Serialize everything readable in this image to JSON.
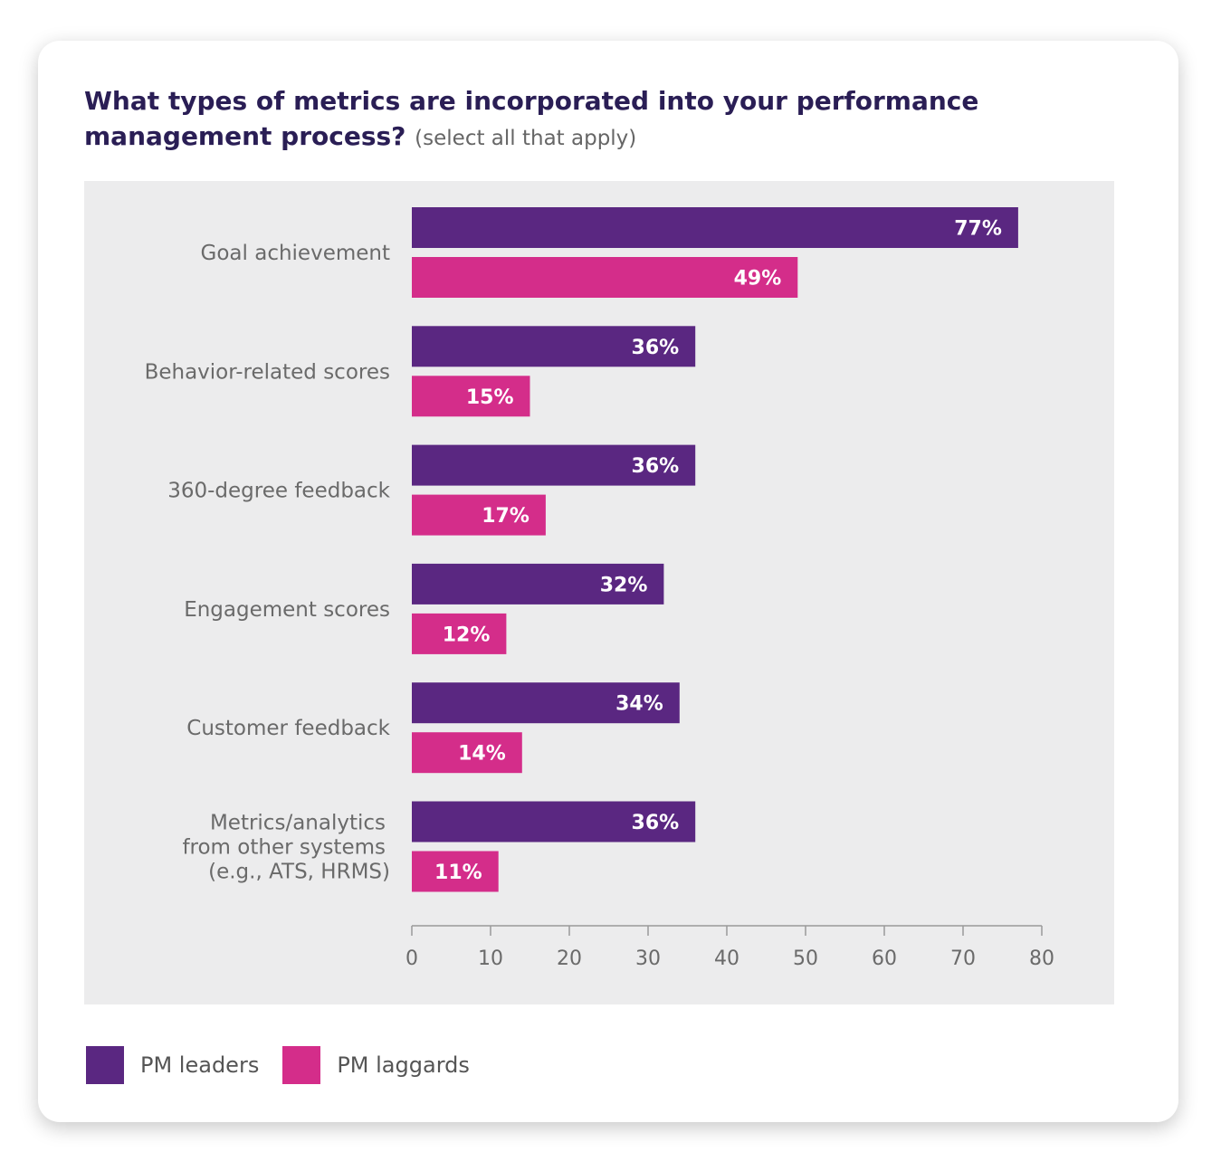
{
  "title": {
    "main": "What types of metrics are incorporated into your performance management process?",
    "sub": "(select all that apply)"
  },
  "legend": {
    "leaders": "PM leaders",
    "laggards": "PM laggards"
  },
  "colors": {
    "leaders": "#5a2781",
    "laggards": "#d42d8a",
    "plot_bg": "#ececed"
  },
  "chart_data": {
    "type": "bar",
    "orientation": "horizontal",
    "title": "What types of metrics are incorporated into your performance management process? (select all that apply)",
    "categories": [
      [
        "Goal achievement"
      ],
      [
        "Behavior-related scores"
      ],
      [
        "360-degree feedback"
      ],
      [
        "Engagement scores"
      ],
      [
        "Customer feedback"
      ],
      [
        "Metrics/analytics",
        "from other systems",
        "(e.g., ATS, HRMS)"
      ]
    ],
    "series": [
      {
        "name": "PM leaders",
        "values": [
          77,
          36,
          36,
          32,
          34,
          36
        ],
        "labels": [
          "77%",
          "36%",
          "36%",
          "32%",
          "34%",
          "36%"
        ]
      },
      {
        "name": "PM laggards",
        "values": [
          49,
          15,
          17,
          12,
          14,
          11
        ],
        "labels": [
          "49%",
          "15%",
          "17%",
          "12%",
          "14%",
          "11%"
        ]
      }
    ],
    "xlim": [
      0,
      80
    ],
    "xticks": [
      0,
      10,
      20,
      30,
      40,
      50,
      60,
      70,
      80
    ],
    "xlabel": "",
    "ylabel": "",
    "grid": false,
    "legend_position": "bottom-left"
  }
}
